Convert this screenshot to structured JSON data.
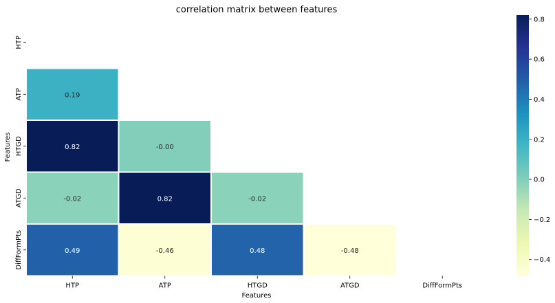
{
  "chart_data": {
    "type": "heatmap",
    "title": "correlation matrix between features",
    "xlabel": "Features",
    "ylabel": "Features",
    "x_labels": [
      "HTP",
      "ATP",
      "HTGD",
      "ATGD",
      "DiffFormPts"
    ],
    "y_labels": [
      "HTP",
      "ATP",
      "HTGD",
      "ATGD",
      "DiffFormPts"
    ],
    "mask": "upper-triangle-and-diagonal",
    "cells": [
      {
        "row": 1,
        "col": 0,
        "value": 0.19,
        "label": "0.19"
      },
      {
        "row": 2,
        "col": 0,
        "value": 0.82,
        "label": "0.82"
      },
      {
        "row": 2,
        "col": 1,
        "value": -0.0,
        "label": "-0.00"
      },
      {
        "row": 3,
        "col": 0,
        "value": -0.02,
        "label": "-0.02"
      },
      {
        "row": 3,
        "col": 1,
        "value": 0.82,
        "label": "0.82"
      },
      {
        "row": 3,
        "col": 2,
        "value": -0.02,
        "label": "-0.02"
      },
      {
        "row": 4,
        "col": 0,
        "value": 0.49,
        "label": "0.49"
      },
      {
        "row": 4,
        "col": 1,
        "value": -0.46,
        "label": "-0.46"
      },
      {
        "row": 4,
        "col": 2,
        "value": 0.48,
        "label": "0.48"
      },
      {
        "row": 4,
        "col": 3,
        "value": -0.48,
        "label": "-0.48"
      }
    ],
    "colormap": "YlGnBu",
    "vmin": -0.48,
    "vmax": 0.82,
    "colorbar_ticks": [
      "0.8",
      "0.6",
      "0.4",
      "0.2",
      "0.0",
      "−0.2",
      "−0.4"
    ],
    "colorbar_tick_values": [
      0.8,
      0.6,
      0.4,
      0.2,
      0.0,
      -0.2,
      -0.4
    ],
    "grid": false,
    "cell_border_color": "#ffffff"
  }
}
